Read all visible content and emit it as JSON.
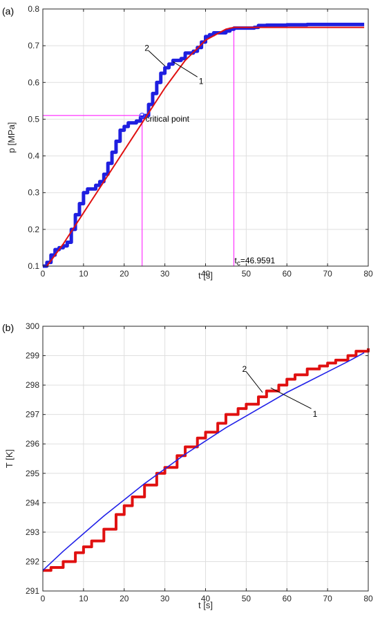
{
  "chart_data": [
    {
      "type": "line",
      "panel_label": "(a)",
      "xlabel": "t [s]",
      "ylabel": "p [MPa]",
      "xlim": [
        0,
        80
      ],
      "ylim": [
        0.1,
        0.8
      ],
      "xticks": [
        0,
        10,
        20,
        30,
        40,
        50,
        60,
        70,
        80
      ],
      "yticks": [
        0.1,
        0.2,
        0.3,
        0.4,
        0.5,
        0.6,
        0.7,
        0.8
      ],
      "grid": true,
      "colors": {
        "measured": "#1f1fe0",
        "fit": "#e01010",
        "guide": "#ff33ff"
      },
      "series": [
        {
          "id": "measured",
          "name": "2",
          "x": [
            0,
            1,
            2,
            3,
            4,
            5,
            6,
            7,
            8,
            9,
            10,
            11,
            12,
            13,
            14,
            15,
            16,
            17,
            18,
            19,
            20,
            21,
            22,
            23,
            24,
            25,
            26,
            27,
            28,
            29,
            30,
            31,
            32,
            33,
            34,
            35,
            36,
            37,
            38,
            39,
            40,
            41,
            42,
            43,
            44,
            45,
            46,
            47,
            48,
            49,
            50,
            52,
            53,
            55,
            60,
            65,
            70,
            75,
            79
          ],
          "y": [
            0.1,
            0.11,
            0.13,
            0.145,
            0.15,
            0.155,
            0.165,
            0.2,
            0.24,
            0.27,
            0.3,
            0.31,
            0.31,
            0.32,
            0.33,
            0.35,
            0.38,
            0.41,
            0.44,
            0.47,
            0.48,
            0.49,
            0.49,
            0.495,
            0.505,
            0.51,
            0.54,
            0.57,
            0.6,
            0.625,
            0.64,
            0.65,
            0.66,
            0.66,
            0.665,
            0.68,
            0.68,
            0.685,
            0.695,
            0.71,
            0.725,
            0.73,
            0.735,
            0.735,
            0.735,
            0.74,
            0.745,
            0.748,
            0.748,
            0.748,
            0.748,
            0.75,
            0.755,
            0.756,
            0.757,
            0.758,
            0.758,
            0.758,
            0.758
          ]
        },
        {
          "id": "fit",
          "name": "1",
          "x": [
            1,
            5,
            10,
            15,
            20,
            25,
            30,
            35,
            40,
            45,
            47,
            50,
            55,
            60,
            65,
            70,
            75,
            79
          ],
          "y": [
            0.1,
            0.16,
            0.245,
            0.33,
            0.415,
            0.5,
            0.585,
            0.66,
            0.715,
            0.745,
            0.75,
            0.75,
            0.75,
            0.75,
            0.75,
            0.75,
            0.75,
            0.75
          ]
        }
      ],
      "guides": [
        {
          "type": "vertical",
          "x": 24.4
        },
        {
          "type": "horizontal",
          "y": 0.51
        },
        {
          "type": "vertical",
          "x": 46.9591
        }
      ],
      "annotations": [
        {
          "text": "critical point",
          "x": 24.4,
          "y": 0.51
        },
        {
          "text_main": "t",
          "text_sub": "c",
          "text_tail": "=46.9591",
          "x": 46.9591,
          "y": 0.1
        }
      ],
      "callouts": [
        {
          "label": "2",
          "from": [
            25,
            0.69
          ],
          "to": [
            30,
            0.645
          ]
        },
        {
          "label": "1",
          "from": [
            31,
            0.66
          ],
          "to": [
            38,
            0.615
          ]
        }
      ]
    },
    {
      "type": "line",
      "panel_label": "(b)",
      "xlabel": "t [s]",
      "ylabel": "T [K]",
      "xlim": [
        0,
        80
      ],
      "ylim": [
        291,
        300
      ],
      "xticks": [
        0,
        10,
        20,
        30,
        40,
        50,
        60,
        70,
        80
      ],
      "yticks": [
        291,
        292,
        293,
        294,
        295,
        296,
        297,
        298,
        299,
        300
      ],
      "grid": true,
      "colors": {
        "measured": "#e01010",
        "fit": "#2020e8"
      },
      "series": [
        {
          "id": "measured",
          "name": "2",
          "x": [
            0,
            2,
            5,
            8,
            10,
            12,
            15,
            18,
            20,
            22,
            25,
            28,
            30,
            33,
            35,
            38,
            40,
            43,
            45,
            48,
            50,
            53,
            55,
            58,
            60,
            62,
            65,
            68,
            70,
            72,
            75,
            77,
            80
          ],
          "y": [
            291.7,
            291.8,
            292.0,
            292.3,
            292.5,
            292.7,
            293.1,
            293.6,
            293.9,
            294.2,
            294.6,
            295.0,
            295.2,
            295.6,
            295.9,
            296.2,
            296.4,
            296.7,
            297.0,
            297.2,
            297.35,
            297.6,
            297.8,
            298.0,
            298.2,
            298.35,
            298.55,
            298.65,
            298.75,
            298.85,
            299.0,
            299.15,
            299.25
          ]
        },
        {
          "id": "fit",
          "name": "1",
          "x": [
            0,
            5,
            10,
            15,
            20,
            25,
            30,
            35,
            40,
            45,
            50,
            55,
            60,
            65,
            70,
            75,
            79
          ],
          "y": [
            291.7,
            292.35,
            292.95,
            293.55,
            294.1,
            294.65,
            295.15,
            295.65,
            296.1,
            296.55,
            296.95,
            297.35,
            297.75,
            298.1,
            298.45,
            298.8,
            299.1
          ]
        }
      ],
      "callouts": [
        {
          "label": "2",
          "from": [
            49,
            298.5
          ],
          "to": [
            54,
            297.75
          ]
        },
        {
          "label": "1",
          "from": [
            55,
            297.95
          ],
          "to": [
            66,
            297.2
          ]
        }
      ]
    }
  ]
}
